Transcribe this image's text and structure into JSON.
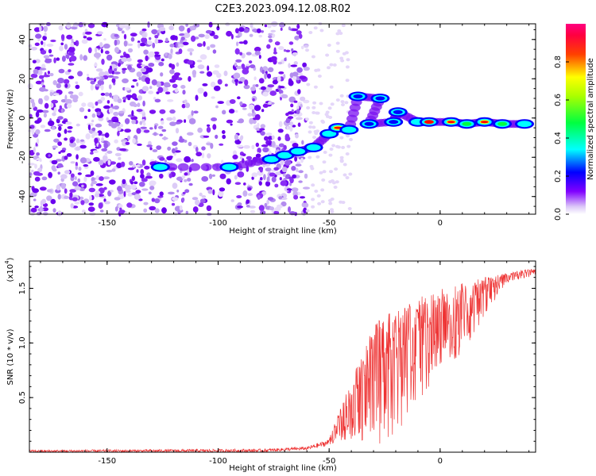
{
  "title": "C2E3.2023.094.12.08.R02",
  "top_panel": {
    "xlabel": "Height of straight line (km)",
    "ylabel": "Frequency (Hz)"
  },
  "colorbar": {
    "label": "Normalized spectral amplitude"
  },
  "bottom_panel": {
    "xlabel": "Height of straight line (km)",
    "ylabel": "SNR (10 * v/v)",
    "scale_label": "(x10",
    "scale_exp": "4",
    "scale_close": ")"
  },
  "chart_data": [
    {
      "type": "heatmap",
      "title": "C2E3.2023.094.12.08.R02",
      "xlabel": "Height of straight line (km)",
      "ylabel": "Frequency (Hz)",
      "xlim": [
        -185,
        43
      ],
      "ylim": [
        -49,
        48
      ],
      "x_ticks": [
        -150,
        -100,
        -50,
        0
      ],
      "y_ticks": [
        -40,
        -20,
        0,
        20,
        40
      ],
      "color_scale": [
        "#ffffff",
        "#dccff5",
        "#8000ff",
        "#0000ff",
        "#00ffff",
        "#00ff00",
        "#ffff00",
        "#ff0000",
        "#ff0080"
      ],
      "colorbar_label": "Normalized spectral amplitude",
      "colorbar_ticks": [
        0.0,
        0.2,
        0.4,
        0.6,
        0.8
      ],
      "colorbar_range": [
        0,
        1
      ],
      "noise_region_x": [
        -185,
        -60
      ],
      "signal_track": [
        {
          "x": -126,
          "y": -25,
          "amp": 0.45
        },
        {
          "x": -95,
          "y": -25,
          "amp": 0.55
        },
        {
          "x": -76,
          "y": -21,
          "amp": 0.45
        },
        {
          "x": -70,
          "y": -19,
          "amp": 0.55
        },
        {
          "x": -64,
          "y": -17,
          "amp": 0.5
        },
        {
          "x": -57,
          "y": -15,
          "amp": 0.5
        },
        {
          "x": -50,
          "y": -8,
          "amp": 0.5
        },
        {
          "x": -46,
          "y": -5,
          "amp": 0.75
        },
        {
          "x": -41,
          "y": -6,
          "amp": 0.45
        },
        {
          "x": -37,
          "y": 11,
          "amp": 0.4
        },
        {
          "x": -27,
          "y": 10,
          "amp": 0.4
        },
        {
          "x": -32,
          "y": -3,
          "amp": 0.35
        },
        {
          "x": -21,
          "y": -2,
          "amp": 0.4
        },
        {
          "x": -19,
          "y": 3,
          "amp": 0.4
        },
        {
          "x": -10,
          "y": -2,
          "amp": 0.55
        },
        {
          "x": -5,
          "y": -2,
          "amp": 0.85
        },
        {
          "x": 5,
          "y": -2,
          "amp": 0.75
        },
        {
          "x": 12,
          "y": -3,
          "amp": 0.7
        },
        {
          "x": 20,
          "y": -2,
          "amp": 0.8
        },
        {
          "x": 28,
          "y": -3,
          "amp": 0.6
        },
        {
          "x": 38,
          "y": -3,
          "amp": 0.5
        }
      ]
    },
    {
      "type": "line",
      "xlabel": "Height of straight line (km)",
      "ylabel": "SNR (10 * v/v)",
      "xlim": [
        -185,
        43
      ],
      "ylim": [
        0,
        1.75
      ],
      "x_ticks": [
        -150,
        -100,
        -50,
        0
      ],
      "y_ticks": [
        0.5,
        1.0,
        1.5
      ],
      "y_multiplier": "x10^4",
      "color": "#ee3333",
      "envelope": {
        "x": [
          -185,
          -80,
          -60,
          -50,
          -46,
          -40,
          -35,
          -30,
          -25,
          -20,
          -15,
          -10,
          -5,
          0,
          10,
          20,
          30,
          43
        ],
        "upper": [
          0.02,
          0.03,
          0.05,
          0.12,
          0.35,
          0.65,
          0.92,
          1.2,
          1.25,
          1.32,
          1.38,
          1.45,
          1.42,
          1.5,
          1.55,
          1.6,
          1.65,
          1.68
        ],
        "lower": [
          0.0,
          0.0,
          0.02,
          0.06,
          0.1,
          0.12,
          0.05,
          0.05,
          0.1,
          0.18,
          0.3,
          0.45,
          0.6,
          0.75,
          0.9,
          1.25,
          1.55,
          1.62
        ]
      }
    }
  ]
}
